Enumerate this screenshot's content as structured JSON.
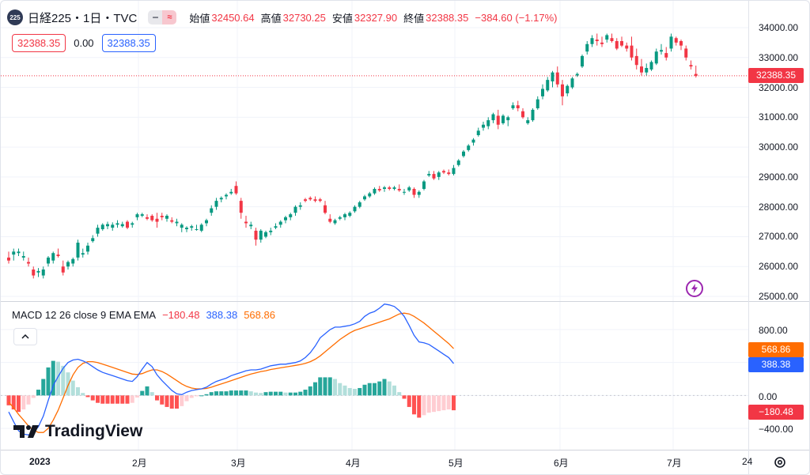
{
  "legend": {
    "badge": "225",
    "title": "日経225・1日・TVC",
    "ohlc": [
      {
        "label": "始値",
        "value": "32450.64"
      },
      {
        "label": "高値",
        "value": "32730.25"
      },
      {
        "label": "安値",
        "value": "32327.90"
      },
      {
        "label": "終値",
        "value": "32388.35"
      }
    ],
    "change": "−384.60 (−1.17%)",
    "icons": [
      "minus-icon",
      "wave-icon"
    ]
  },
  "order_boxes": {
    "sell": "32388.35",
    "spread": "0.00",
    "buy": "32388.35"
  },
  "price_axis": {
    "labels": [
      "34000.00",
      "33000.00",
      "32000.00",
      "31000.00",
      "30000.00",
      "29000.00",
      "28000.00",
      "27000.00",
      "26000.00",
      "25000.00"
    ],
    "last_price": "32388.35"
  },
  "macd": {
    "title": "MACD 12 26 close 9 EMA EMA",
    "hist_value": "−180.48",
    "macd_value": "388.38",
    "signal_value": "568.86",
    "axis_labels": [
      "800.00",
      "0.00",
      "−400.00"
    ],
    "tag_signal": "568.86",
    "tag_macd": "388.38",
    "tag_hist": "−180.48"
  },
  "time_axis": [
    "2023",
    "2月",
    "3月",
    "4月",
    "5月",
    "6月",
    "7月",
    "24"
  ],
  "brand": "TradingView",
  "colors": {
    "up": "#089981",
    "down": "#f23645",
    "macd": "#2962ff",
    "signal": "#ff6d00",
    "hist_up": "#26a69a",
    "hist_up_light": "#b2dfdb",
    "hist_down": "#ff5252",
    "hist_down_light": "#ffcdd2"
  },
  "chart_data": {
    "type": "candlestick",
    "price_ylim": [
      25000,
      34000
    ],
    "candles_ohlc": [
      [
        26300,
        26500,
        26100,
        26200
      ],
      [
        26400,
        26600,
        26200,
        26500
      ],
      [
        26450,
        26600,
        26350,
        26500
      ],
      [
        26300,
        26500,
        26200,
        26350
      ],
      [
        26150,
        26300,
        26000,
        26100
      ],
      [
        25900,
        26000,
        25600,
        25700
      ],
      [
        25800,
        25950,
        25650,
        25850
      ],
      [
        25700,
        26000,
        25600,
        25900
      ],
      [
        26100,
        26350,
        26000,
        26300
      ],
      [
        26200,
        26500,
        26100,
        26450
      ],
      [
        26400,
        26600,
        26300,
        26350
      ],
      [
        26000,
        26200,
        25700,
        25800
      ],
      [
        26000,
        26200,
        25900,
        26150
      ],
      [
        26100,
        26300,
        26000,
        26250
      ],
      [
        26300,
        26900,
        26200,
        26800
      ],
      [
        26400,
        26600,
        26300,
        26450
      ],
      [
        26500,
        26800,
        26400,
        26700
      ],
      [
        26850,
        27050,
        26800,
        26950
      ],
      [
        27100,
        27400,
        27000,
        27300
      ],
      [
        27250,
        27450,
        27200,
        27400
      ],
      [
        27350,
        27500,
        27250,
        27420
      ],
      [
        27300,
        27480,
        27200,
        27400
      ],
      [
        27400,
        27550,
        27300,
        27450
      ],
      [
        27350,
        27500,
        27300,
        27420
      ],
      [
        27500,
        27550,
        27250,
        27300
      ],
      [
        27400,
        27500,
        27300,
        27450
      ],
      [
        27650,
        27800,
        27550,
        27750
      ],
      [
        27700,
        27800,
        27650,
        27750
      ],
      [
        27650,
        27750,
        27550,
        27600
      ],
      [
        27700,
        27750,
        27500,
        27550
      ],
      [
        27600,
        27800,
        27300,
        27500
      ],
      [
        27700,
        27800,
        27550,
        27650
      ],
      [
        27600,
        27750,
        27500,
        27700
      ],
      [
        27550,
        27650,
        27450,
        27500
      ],
      [
        27450,
        27600,
        27350,
        27500
      ],
      [
        27300,
        27450,
        27150,
        27400
      ],
      [
        27250,
        27350,
        27150,
        27300
      ],
      [
        27300,
        27400,
        27200,
        27350
      ],
      [
        27250,
        27400,
        27200,
        27250
      ],
      [
        27200,
        27450,
        27150,
        27400
      ],
      [
        27450,
        27600,
        27350,
        27550
      ],
      [
        27800,
        28050,
        27700,
        27950
      ],
      [
        28000,
        28300,
        27900,
        28200
      ],
      [
        28250,
        28350,
        28150,
        28300
      ],
      [
        28350,
        28450,
        28250,
        28400
      ],
      [
        28450,
        28600,
        28400,
        28500
      ],
      [
        28700,
        28850,
        28400,
        28450
      ],
      [
        28200,
        28300,
        27600,
        27800
      ],
      [
        27500,
        27700,
        27300,
        27450
      ],
      [
        27350,
        27500,
        27250,
        27400
      ],
      [
        27200,
        27300,
        26700,
        26900
      ],
      [
        26900,
        27250,
        26800,
        27200
      ],
      [
        27000,
        27200,
        26950,
        27150
      ],
      [
        27150,
        27300,
        27050,
        27200
      ],
      [
        27300,
        27450,
        27250,
        27350
      ],
      [
        27400,
        27550,
        27300,
        27500
      ],
      [
        27550,
        27700,
        27450,
        27650
      ],
      [
        27650,
        27800,
        27550,
        27750
      ],
      [
        27800,
        28050,
        27700,
        28000
      ],
      [
        28000,
        28150,
        27900,
        28050
      ],
      [
        28250,
        28300,
        28150,
        28200
      ],
      [
        28300,
        28350,
        28200,
        28250
      ],
      [
        28250,
        28350,
        28150,
        28200
      ],
      [
        28250,
        28300,
        28150,
        28200
      ],
      [
        28050,
        28200,
        27750,
        27800
      ],
      [
        27600,
        27750,
        27450,
        27500
      ],
      [
        27450,
        27600,
        27400,
        27550
      ],
      [
        27600,
        27700,
        27550,
        27650
      ],
      [
        27650,
        27800,
        27550,
        27750
      ],
      [
        27700,
        27850,
        27650,
        27800
      ],
      [
        27850,
        28050,
        27800,
        28000
      ],
      [
        28000,
        28200,
        27950,
        28150
      ],
      [
        28250,
        28400,
        28200,
        28350
      ],
      [
        28350,
        28500,
        28300,
        28450
      ],
      [
        28450,
        28650,
        28400,
        28600
      ],
      [
        28600,
        28700,
        28500,
        28550
      ],
      [
        28600,
        28700,
        28500,
        28650
      ],
      [
        28650,
        28700,
        28550,
        28600
      ],
      [
        28600,
        28700,
        28550,
        28650
      ],
      [
        28600,
        28750,
        28500,
        28550
      ],
      [
        28500,
        28600,
        28400,
        28500
      ],
      [
        28550,
        28700,
        28500,
        28650
      ],
      [
        28600,
        28650,
        28300,
        28400
      ],
      [
        28400,
        28550,
        28300,
        28500
      ],
      [
        28600,
        28900,
        28550,
        28850
      ],
      [
        29050,
        29200,
        29000,
        29100
      ],
      [
        29100,
        29200,
        28900,
        28950
      ],
      [
        29000,
        29200,
        28900,
        29150
      ],
      [
        29200,
        29250,
        29100,
        29150
      ],
      [
        29150,
        29250,
        29050,
        29100
      ],
      [
        29100,
        29400,
        29050,
        29300
      ],
      [
        29400,
        29600,
        29350,
        29550
      ],
      [
        29700,
        29900,
        29650,
        29850
      ],
      [
        29900,
        30100,
        29850,
        30050
      ],
      [
        30150,
        30300,
        30050,
        30250
      ],
      [
        30400,
        30650,
        30350,
        30550
      ],
      [
        30650,
        30850,
        30550,
        30750
      ],
      [
        30700,
        31000,
        30600,
        30900
      ],
      [
        30900,
        31150,
        30800,
        31100
      ],
      [
        31050,
        31250,
        30600,
        30750
      ],
      [
        30800,
        31100,
        30750,
        31050
      ],
      [
        30900,
        31050,
        30700,
        31000
      ],
      [
        31300,
        31500,
        31250,
        31400
      ],
      [
        31400,
        31550,
        31200,
        31300
      ],
      [
        31200,
        31300,
        30950,
        31000
      ],
      [
        30800,
        31000,
        30750,
        30900
      ],
      [
        30900,
        31300,
        30850,
        31250
      ],
      [
        31300,
        31700,
        31250,
        31600
      ],
      [
        31700,
        32100,
        31600,
        31950
      ],
      [
        31900,
        32350,
        31850,
        32250
      ],
      [
        32200,
        32550,
        32000,
        32500
      ],
      [
        32500,
        32700,
        32000,
        32100
      ],
      [
        32100,
        32250,
        31400,
        31700
      ],
      [
        31800,
        32100,
        31700,
        32050
      ],
      [
        32000,
        32350,
        31950,
        32300
      ],
      [
        32400,
        32500,
        32350,
        32450
      ],
      [
        32700,
        33100,
        32650,
        33050
      ],
      [
        33200,
        33550,
        33100,
        33450
      ],
      [
        33450,
        33750,
        33350,
        33650
      ],
      [
        33600,
        33800,
        33400,
        33550
      ],
      [
        33500,
        33700,
        33350,
        33450
      ],
      [
        33600,
        33800,
        33500,
        33750
      ],
      [
        33650,
        33800,
        33500,
        33550
      ],
      [
        33550,
        33650,
        33250,
        33300
      ],
      [
        33550,
        33700,
        33350,
        33400
      ],
      [
        33400,
        33500,
        33200,
        33300
      ],
      [
        33400,
        33700,
        32900,
        33000
      ],
      [
        33050,
        33300,
        32600,
        32750
      ],
      [
        32700,
        32950,
        32400,
        32500
      ],
      [
        32500,
        32800,
        32400,
        32650
      ],
      [
        32600,
        32900,
        32550,
        32850
      ],
      [
        32800,
        33300,
        32750,
        33200
      ],
      [
        33200,
        33450,
        33100,
        33250
      ],
      [
        33150,
        33350,
        32900,
        33000
      ],
      [
        33300,
        33800,
        33200,
        33700
      ],
      [
        33650,
        33700,
        33400,
        33500
      ],
      [
        33550,
        33600,
        33250,
        33400
      ],
      [
        33300,
        33400,
        32900,
        33000
      ],
      [
        32750,
        32900,
        32600,
        32700
      ],
      [
        32450,
        32730,
        32330,
        32388
      ]
    ],
    "macd_ylim": [
      -600,
      1000
    ],
    "macd_line": [
      -200,
      -320,
      -430,
      -470,
      -480,
      -450,
      -380,
      -250,
      -60,
      120,
      230,
      330,
      400,
      430,
      440,
      420,
      390,
      350,
      310,
      280,
      260,
      240,
      220,
      200,
      180,
      170,
      230,
      320,
      400,
      350,
      250,
      180,
      120,
      60,
      20,
      10,
      40,
      60,
      70,
      80,
      100,
      140,
      170,
      190,
      210,
      240,
      260,
      280,
      300,
      310,
      310,
      320,
      340,
      360,
      370,
      380,
      380,
      390,
      400,
      420,
      460,
      520,
      600,
      700,
      750,
      800,
      830,
      830,
      840,
      850,
      870,
      900,
      960,
      1000,
      1020,
      1060,
      1110,
      1100,
      1080,
      1030,
      960,
      850,
      730,
      650,
      640,
      620,
      580,
      540,
      500,
      460,
      388
    ],
    "signal_line": [
      -80,
      -150,
      -230,
      -300,
      -370,
      -420,
      -450,
      -450,
      -400,
      -300,
      -180,
      -30,
      120,
      250,
      340,
      390,
      410,
      410,
      400,
      380,
      360,
      340,
      320,
      300,
      280,
      260,
      255,
      265,
      290,
      310,
      310,
      290,
      260,
      220,
      180,
      140,
      110,
      90,
      80,
      80,
      85,
      100,
      120,
      140,
      160,
      180,
      200,
      220,
      240,
      260,
      275,
      290,
      300,
      315,
      325,
      335,
      345,
      355,
      365,
      375,
      390,
      410,
      440,
      480,
      530,
      580,
      630,
      680,
      720,
      760,
      790,
      810,
      830,
      850,
      870,
      890,
      910,
      930,
      960,
      990,
      1000,
      990,
      960,
      920,
      880,
      830,
      780,
      730,
      680,
      630,
      569
    ],
    "histogram": [
      -120,
      -170,
      -200,
      -170,
      -110,
      -30,
      70,
      200,
      340,
      420,
      410,
      360,
      280,
      180,
      100,
      30,
      -20,
      -60,
      -90,
      -100,
      -100,
      -100,
      -100,
      -100,
      -100,
      -90,
      -25,
      55,
      110,
      40,
      -60,
      -110,
      -140,
      -160,
      -160,
      -130,
      -70,
      -30,
      -10,
      0,
      15,
      40,
      50,
      50,
      50,
      60,
      60,
      60,
      60,
      50,
      35,
      30,
      40,
      45,
      45,
      45,
      35,
      35,
      35,
      45,
      70,
      110,
      160,
      220,
      220,
      220,
      200,
      150,
      120,
      90,
      80,
      90,
      130,
      150,
      150,
      170,
      200,
      170,
      120,
      40,
      -40,
      -140,
      -230,
      -270,
      -240,
      -210,
      -200,
      -190,
      -180,
      -170,
      -180
    ]
  }
}
